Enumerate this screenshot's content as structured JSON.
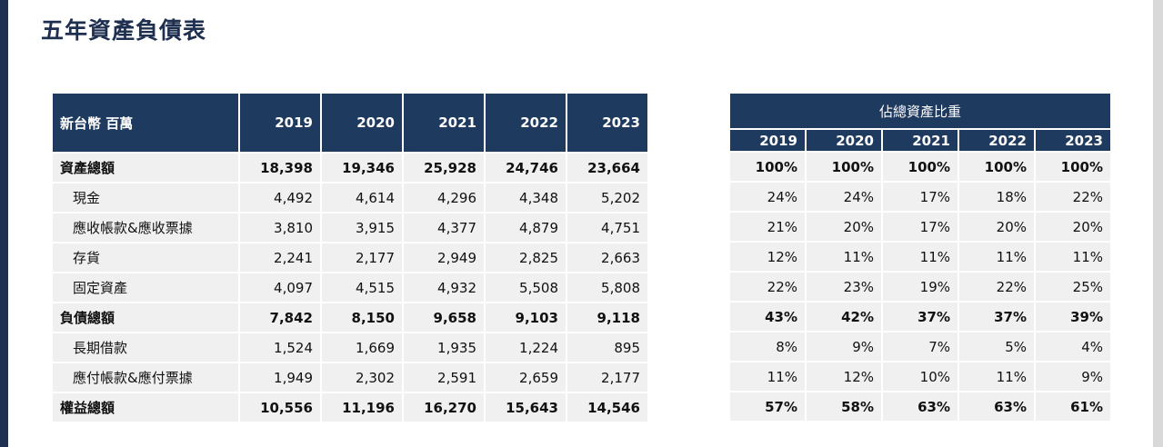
{
  "title": "五年資產負債表",
  "table": {
    "header": [
      "新台幣 百萬",
      "2019",
      "2020",
      "2021",
      "2022",
      "2023"
    ],
    "rows": [
      [
        "資產總額",
        "18,398",
        "19,346",
        "25,928",
        "24,746",
        "23,664"
      ],
      [
        "現金",
        "4,492",
        "4,614",
        "4,296",
        "4,348",
        "5,202"
      ],
      [
        "應收帳款&應收票據",
        "3,810",
        "3,915",
        "4,377",
        "4,879",
        "4,751"
      ],
      [
        "存貨",
        "2,241",
        "2,177",
        "2,949",
        "2,825",
        "2,663"
      ],
      [
        "固定資產",
        "4,097",
        "4,515",
        "4,932",
        "5,508",
        "5,808"
      ],
      [
        "負債總額",
        "7,842",
        "8,150",
        "9,658",
        "9,103",
        "9,118"
      ],
      [
        "長期借款",
        "1,524",
        "1,669",
        "1,935",
        "1,224",
        "895"
      ],
      [
        "應付帳款&應付票據",
        "1,949",
        "2,302",
        "2,591",
        "2,659",
        "2,177"
      ],
      [
        "權益總額",
        "10,556",
        "11,196",
        "16,270",
        "15,643",
        "14,546"
      ]
    ]
  },
  "ratio_table": {
    "title": "佔總資產比重",
    "header": [
      "2019",
      "2020",
      "2021",
      "2022",
      "2023"
    ],
    "rows": [
      [
        "100%",
        "100%",
        "100%",
        "100%",
        "100%"
      ],
      [
        "24%",
        "24%",
        "17%",
        "18%",
        "22%"
      ],
      [
        "21%",
        "20%",
        "17%",
        "20%",
        "20%"
      ],
      [
        "12%",
        "11%",
        "11%",
        "11%",
        "11%"
      ],
      [
        "22%",
        "23%",
        "19%",
        "22%",
        "25%"
      ],
      [
        "43%",
        "42%",
        "37%",
        "37%",
        "39%"
      ],
      [
        "8%",
        "9%",
        "7%",
        "5%",
        "4%"
      ],
      [
        "11%",
        "12%",
        "10%",
        "11%",
        "9%"
      ],
      [
        "57%",
        "58%",
        "63%",
        "63%",
        "61%"
      ]
    ]
  }
}
